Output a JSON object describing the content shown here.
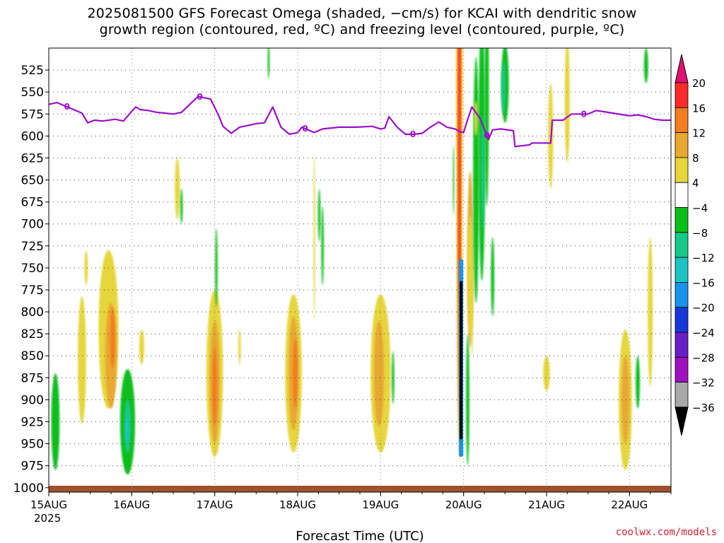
{
  "chart_data": {
    "type": "heatmap",
    "title_line1": "2025081500 GFS Forecast Omega (shaded, −cm/s) for KCAI with dendritic snow",
    "title_line2": "growth region (contoured, red, ºC) and freezing level (contoured, purple, ºC)",
    "xlabel": "Forecast Time (UTC)",
    "year_label": "2025",
    "x_ticks": [
      "15AUG",
      "16AUG",
      "17AUG",
      "18AUG",
      "19AUG",
      "20AUG",
      "21AUG",
      "22AUG"
    ],
    "xlim_days": [
      0,
      7.5
    ],
    "y_ticks": [
      525,
      550,
      575,
      600,
      625,
      650,
      675,
      700,
      725,
      750,
      775,
      800,
      825,
      850,
      875,
      900,
      925,
      950,
      975,
      1000
    ],
    "ylim": [
      500,
      1005
    ],
    "grid": true,
    "colorbar": {
      "labels": [
        "20",
        "16",
        "12",
        "8",
        "4",
        "−4",
        "−8",
        "−12",
        "−16",
        "−20",
        "−24",
        "−28",
        "−32",
        "−36"
      ],
      "colors": [
        "#ff2a2a",
        "#f57d1e",
        "#e8a830",
        "#e6d63a",
        "#ffffff",
        "#0bbf1b",
        "#14c98a",
        "#1ac4c4",
        "#1793ec",
        "#1638d8",
        "#6a1ec8",
        "#9e12c0",
        "#a9a9a9"
      ],
      "top_color": "#e01272",
      "bottom_color": "#000000"
    },
    "freezing_level": {
      "color": "#9a10c8",
      "label": "0",
      "x_days": [
        0,
        0.1,
        0.2,
        0.3,
        0.4,
        0.47,
        0.55,
        0.65,
        0.8,
        0.9,
        1.0,
        1.05,
        1.1,
        1.2,
        1.3,
        1.4,
        1.5,
        1.6,
        1.8,
        1.95,
        2.05,
        2.1,
        2.2,
        2.3,
        2.4,
        2.5,
        2.6,
        2.7,
        2.8,
        2.9,
        3.0,
        3.05,
        3.1,
        3.2,
        3.3,
        3.5,
        3.7,
        3.9,
        4.0,
        4.05,
        4.1,
        4.2,
        4.3,
        4.4,
        4.5,
        4.6,
        4.7,
        4.8,
        4.9,
        4.95,
        5.0,
        5.05,
        5.1,
        5.2,
        5.3,
        5.35,
        5.45,
        5.6,
        5.62,
        5.8,
        5.82,
        6.05,
        6.07,
        6.2,
        6.3,
        6.5,
        6.6,
        6.8,
        7.0,
        7.1,
        7.2,
        7.3,
        7.4,
        7.5
      ],
      "pressure_hpa": [
        564,
        562,
        566,
        570,
        574,
        585,
        582,
        583,
        581,
        583,
        572,
        567,
        570,
        571,
        573,
        574,
        575,
        573,
        555,
        558,
        577,
        589,
        597,
        590,
        588,
        586,
        585,
        567,
        590,
        598,
        596,
        590,
        592,
        596,
        592,
        590,
        590,
        589,
        592,
        591,
        578,
        590,
        598,
        598,
        597,
        590,
        584,
        590,
        592,
        595,
        596,
        581,
        567,
        580,
        604,
        593,
        592,
        594,
        612,
        610,
        608,
        608,
        582,
        582,
        575,
        575,
        571,
        574,
        577,
        576,
        578,
        581,
        582,
        582
      ]
    },
    "omega_blobs": [
      {
        "x": 0.18,
        "p": 110,
        "w": 0.04,
        "h": 60,
        "c": "#e6d63a"
      },
      {
        "x": 0.08,
        "p": 220,
        "w": 0.04,
        "h": 90,
        "c": "#e6d63a"
      },
      {
        "x": 0.15,
        "p": 210,
        "w": 0.025,
        "h": 60,
        "c": "#0bbf1b"
      },
      {
        "x": 0.45,
        "p": 175,
        "w": 0.04,
        "h": 70,
        "c": "#0bbf1b"
      },
      {
        "x": 0.08,
        "p": 925,
        "w": 0.05,
        "h": 110,
        "c": "#0bbf1b"
      },
      {
        "x": 0.45,
        "p": 750,
        "w": 0.02,
        "h": 40,
        "c": "#e6d63a"
      },
      {
        "x": 0.4,
        "p": 855,
        "w": 0.05,
        "h": 145,
        "c": "#e6d63a"
      },
      {
        "x": 1.0,
        "p": 170,
        "w": 0.06,
        "h": 110,
        "c": "#e6d63a"
      },
      {
        "x": 1.02,
        "p": 130,
        "w": 0.035,
        "h": 70,
        "c": "#e8a830"
      },
      {
        "x": 1.05,
        "p": 400,
        "w": 0.05,
        "h": 150,
        "c": "#0bbf1b"
      },
      {
        "x": 0.72,
        "p": 820,
        "w": 0.12,
        "h": 180,
        "c": "#e6d63a"
      },
      {
        "x": 0.75,
        "p": 850,
        "w": 0.07,
        "h": 120,
        "c": "#e8a830"
      },
      {
        "x": 0.77,
        "p": 830,
        "w": 0.03,
        "h": 70,
        "c": "#f57d1e"
      },
      {
        "x": 0.95,
        "p": 925,
        "w": 0.09,
        "h": 120,
        "c": "#0bbf1b"
      },
      {
        "x": 0.95,
        "p": 930,
        "w": 0.04,
        "h": 60,
        "c": "#14c98a"
      },
      {
        "x": 0.94,
        "p": 935,
        "w": 0.02,
        "h": 30,
        "c": "#1ac4c4"
      },
      {
        "x": 1.12,
        "p": 840,
        "w": 0.03,
        "h": 40,
        "c": "#e6d63a"
      },
      {
        "x": 1.55,
        "p": 660,
        "w": 0.03,
        "h": 70,
        "c": "#e6d63a"
      },
      {
        "x": 1.6,
        "p": 680,
        "w": 0.015,
        "h": 40,
        "c": "#0bbf1b"
      },
      {
        "x": 2.0,
        "p": 870,
        "w": 0.1,
        "h": 190,
        "c": "#e6d63a"
      },
      {
        "x": 2.0,
        "p": 880,
        "w": 0.06,
        "h": 140,
        "c": "#e8a830"
      },
      {
        "x": 2.0,
        "p": 885,
        "w": 0.03,
        "h": 90,
        "c": "#f57d1e"
      },
      {
        "x": 2.02,
        "p": 750,
        "w": 0.015,
        "h": 90,
        "c": "#0bbf1b"
      },
      {
        "x": 2.35,
        "p": 310,
        "w": 0.03,
        "h": 120,
        "c": "#e6d63a"
      },
      {
        "x": 2.27,
        "p": 215,
        "w": 0.015,
        "h": 50,
        "c": "#e6d63a"
      },
      {
        "x": 2.3,
        "p": 840,
        "w": 0.015,
        "h": 40,
        "c": "#e6d63a"
      },
      {
        "x": 2.75,
        "p": 360,
        "w": 0.04,
        "h": 220,
        "c": "#e6d63a"
      },
      {
        "x": 2.65,
        "p": 515,
        "w": 0.012,
        "h": 40,
        "c": "#0bbf1b"
      },
      {
        "x": 2.95,
        "p": 870,
        "w": 0.1,
        "h": 180,
        "c": "#e6d63a"
      },
      {
        "x": 2.95,
        "p": 870,
        "w": 0.06,
        "h": 130,
        "c": "#e8a830"
      },
      {
        "x": 2.97,
        "p": 870,
        "w": 0.03,
        "h": 80,
        "c": "#f57d1e"
      },
      {
        "x": 3.2,
        "p": 715,
        "w": 0.01,
        "h": 190,
        "c": "#e6d63a"
      },
      {
        "x": 3.26,
        "p": 690,
        "w": 0.015,
        "h": 60,
        "c": "#0bbf1b"
      },
      {
        "x": 3.27,
        "p": 115,
        "w": 0.02,
        "h": 60,
        "c": "#e6d63a"
      },
      {
        "x": 3.3,
        "p": 725,
        "w": 0.015,
        "h": 90,
        "c": "#0bbf1b"
      },
      {
        "x": 4.05,
        "p": 250,
        "w": 0.04,
        "h": 150,
        "c": "#e6d63a"
      },
      {
        "x": 4.0,
        "p": 870,
        "w": 0.12,
        "h": 180,
        "c": "#e6d63a"
      },
      {
        "x": 3.98,
        "p": 870,
        "w": 0.06,
        "h": 120,
        "c": "#e8a830"
      },
      {
        "x": 4.15,
        "p": 875,
        "w": 0.015,
        "h": 60,
        "c": "#0bbf1b"
      },
      {
        "x": 4.95,
        "p": 520,
        "w": 0.04,
        "h": 900,
        "c": "#e6d63a"
      },
      {
        "x": 4.95,
        "p": 500,
        "w": 0.025,
        "h": 880,
        "c": "#f57d1e"
      },
      {
        "x": 4.95,
        "p": 480,
        "w": 0.012,
        "h": 860,
        "c": "#ff2a2a"
      },
      {
        "x": 5.08,
        "p": 740,
        "w": 0.035,
        "h": 200,
        "c": "#e8a830"
      },
      {
        "x": 5.08,
        "p": 760,
        "w": 0.035,
        "h": 140,
        "c": "#e6d63a"
      },
      {
        "x": 5.05,
        "p": 900,
        "w": 0.02,
        "h": 150,
        "c": "#0bbf1b"
      },
      {
        "x": 5.15,
        "p": 650,
        "w": 0.035,
        "h": 280,
        "c": "#0bbf1b"
      },
      {
        "x": 5.15,
        "p": 580,
        "w": 0.02,
        "h": 40,
        "c": "#e6d63a"
      },
      {
        "x": 5.22,
        "p": 615,
        "w": 0.04,
        "h": 300,
        "c": "#0bbf1b"
      },
      {
        "x": 5.23,
        "p": 640,
        "w": 0.02,
        "h": 130,
        "c": "#14c98a"
      },
      {
        "x": 5.28,
        "p": 550,
        "w": 0.025,
        "h": 260,
        "c": "#0bbf1b"
      },
      {
        "x": 5.35,
        "p": 760,
        "w": 0.02,
        "h": 90,
        "c": "#0bbf1b"
      },
      {
        "x": 5.1,
        "p": 800,
        "w": 0.012,
        "h": 100,
        "c": "#e6d63a"
      },
      {
        "x": 5.5,
        "p": 540,
        "w": 0.045,
        "h": 90,
        "c": "#0bbf1b"
      },
      {
        "x": 5.48,
        "p": 545,
        "w": 0.025,
        "h": 60,
        "c": "#14c98a"
      },
      {
        "x": 4.88,
        "p": 650,
        "w": 0.008,
        "h": 80,
        "c": "#0bbf1b"
      },
      {
        "x": 6.0,
        "p": 870,
        "w": 0.04,
        "h": 40,
        "c": "#e6d63a"
      },
      {
        "x": 6.05,
        "p": 600,
        "w": 0.03,
        "h": 120,
        "c": "#e6d63a"
      },
      {
        "x": 6.25,
        "p": 560,
        "w": 0.03,
        "h": 140,
        "c": "#e6d63a"
      },
      {
        "x": 6.95,
        "p": 900,
        "w": 0.08,
        "h": 160,
        "c": "#e6d63a"
      },
      {
        "x": 6.95,
        "p": 900,
        "w": 0.045,
        "h": 100,
        "c": "#e8a830"
      },
      {
        "x": 7.1,
        "p": 880,
        "w": 0.025,
        "h": 60,
        "c": "#0bbf1b"
      },
      {
        "x": 7.25,
        "p": 800,
        "w": 0.03,
        "h": 170,
        "c": "#e6d63a"
      },
      {
        "x": 7.2,
        "p": 520,
        "w": 0.025,
        "h": 40,
        "c": "#0bbf1b"
      },
      {
        "x": 7.45,
        "p": 220,
        "w": 0.02,
        "h": 90,
        "c": "#e6d63a"
      }
    ],
    "black_core": {
      "x": 4.97,
      "p_top": 765,
      "p_bottom": 945,
      "c": "#000000"
    },
    "blue_core": {
      "x": 4.97,
      "p_top": 740,
      "p_bottom": 965,
      "c": "#1793ec"
    },
    "ground_band": {
      "color": "#a0522d"
    }
  },
  "credit": "coolwx.com/models"
}
